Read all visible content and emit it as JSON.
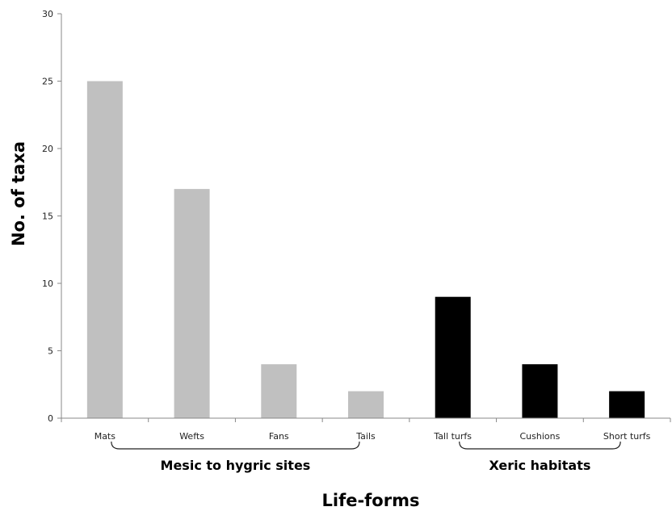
{
  "chart_data": {
    "type": "bar",
    "categories": [
      "Mats",
      "Wefts",
      "Fans",
      "Tails",
      "Tall turfs",
      "Cushions",
      "Short turfs"
    ],
    "values": [
      25,
      17,
      4,
      2,
      9,
      4,
      2
    ],
    "bar_colors": [
      "#c0c0c0",
      "#c0c0c0",
      "#c0c0c0",
      "#c0c0c0",
      "#000000",
      "#000000",
      "#000000"
    ],
    "xlabel": "Life-forms",
    "ylabel": "No. of taxa",
    "ylim": [
      0,
      30
    ],
    "yticks": [
      0,
      5,
      10,
      15,
      20,
      25,
      30
    ],
    "grid": false,
    "legend": "none",
    "groups": [
      {
        "label": "Mesic to hygric sites",
        "from": 0,
        "to": 3
      },
      {
        "label": "Xeric habitats",
        "from": 4,
        "to": 6
      }
    ]
  }
}
